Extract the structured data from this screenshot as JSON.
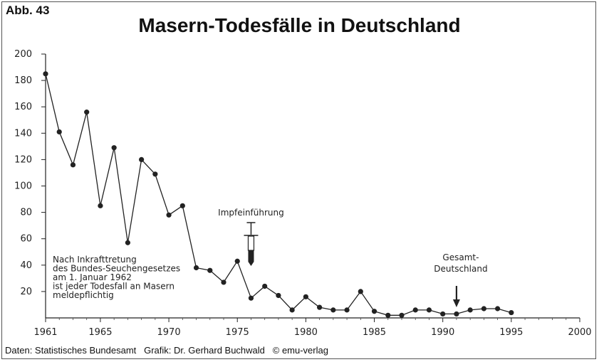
{
  "header": {
    "figure_label": "Abb. 43",
    "title": "Masern-Todesfälle in Deutschland"
  },
  "footer": {
    "source": "Daten: Statistisches Bundesamt",
    "graphic": "Grafik: Dr. Gerhard Buchwald",
    "copyright": "© emu-verlag"
  },
  "chart_data": {
    "type": "line",
    "title": "Masern-Todesfälle in Deutschland",
    "xlabel": "",
    "ylabel": "",
    "xlim": [
      1961,
      2000
    ],
    "ylim": [
      0,
      200
    ],
    "x_ticks": [
      1961,
      1965,
      1970,
      1975,
      1980,
      1985,
      1990,
      1995,
      2000
    ],
    "y_ticks": [
      20,
      40,
      60,
      80,
      100,
      120,
      140,
      160,
      180,
      200
    ],
    "grid": false,
    "legend": "none",
    "marker": "dot",
    "line_color": "#222222",
    "x": [
      1961,
      1962,
      1963,
      1964,
      1965,
      1966,
      1967,
      1968,
      1969,
      1970,
      1971,
      1972,
      1973,
      1974,
      1975,
      1976,
      1977,
      1978,
      1979,
      1980,
      1981,
      1982,
      1983,
      1984,
      1985,
      1986,
      1987,
      1988,
      1989,
      1990,
      1991,
      1992,
      1993,
      1994,
      1995
    ],
    "y": [
      185,
      141,
      116,
      156,
      85,
      129,
      57,
      120,
      109,
      78,
      85,
      38,
      36,
      27,
      43,
      15,
      24,
      17,
      6,
      16,
      8,
      6,
      6,
      20,
      5,
      2,
      2,
      6,
      6,
      3,
      3,
      6,
      7,
      7,
      4
    ],
    "annotations": [
      {
        "id": "law",
        "lines": [
          "Nach Inkrafttretung",
          "des Bundes-Seuchengesetzes",
          "am 1. Januar 1962",
          "ist jeder Todesfall an Masern",
          "meldepflichtig"
        ]
      },
      {
        "id": "vaccine",
        "lines": [
          "Impfeinführung"
        ],
        "x": 1976
      },
      {
        "id": "reunification",
        "lines": [
          "Gesamt-",
          "Deutschland"
        ],
        "x": 1991
      }
    ]
  }
}
